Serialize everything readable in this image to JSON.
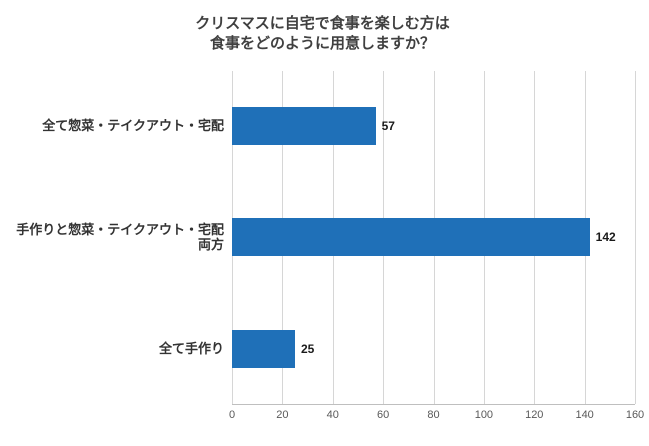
{
  "chart_data": {
    "type": "bar",
    "orientation": "horizontal",
    "title": "クリスマスに自宅で食事を楽しむ方は 食事をどのように用意しますか？",
    "title_lines": [
      "クリスマスに自宅で食事を楽しむ方は",
      "食事をどのように用意しますか？"
    ],
    "categories": [
      "全て惣菜・テイクアウト・宅配",
      "手作りと惣菜・テイクアウト・宅配両方",
      "全て手作り"
    ],
    "values": [
      57,
      142,
      25
    ],
    "x_ticks": [
      0,
      20,
      40,
      60,
      80,
      100,
      120,
      140,
      160
    ],
    "xlim": [
      0,
      160
    ],
    "xlabel": "",
    "ylabel": "",
    "grid": true,
    "legend": "none",
    "bar_color": "#1f70b8",
    "value_label_color": "#1a1a1a",
    "grid_color": "#d6d6d6",
    "axis_color": "#bfbfbf"
  }
}
